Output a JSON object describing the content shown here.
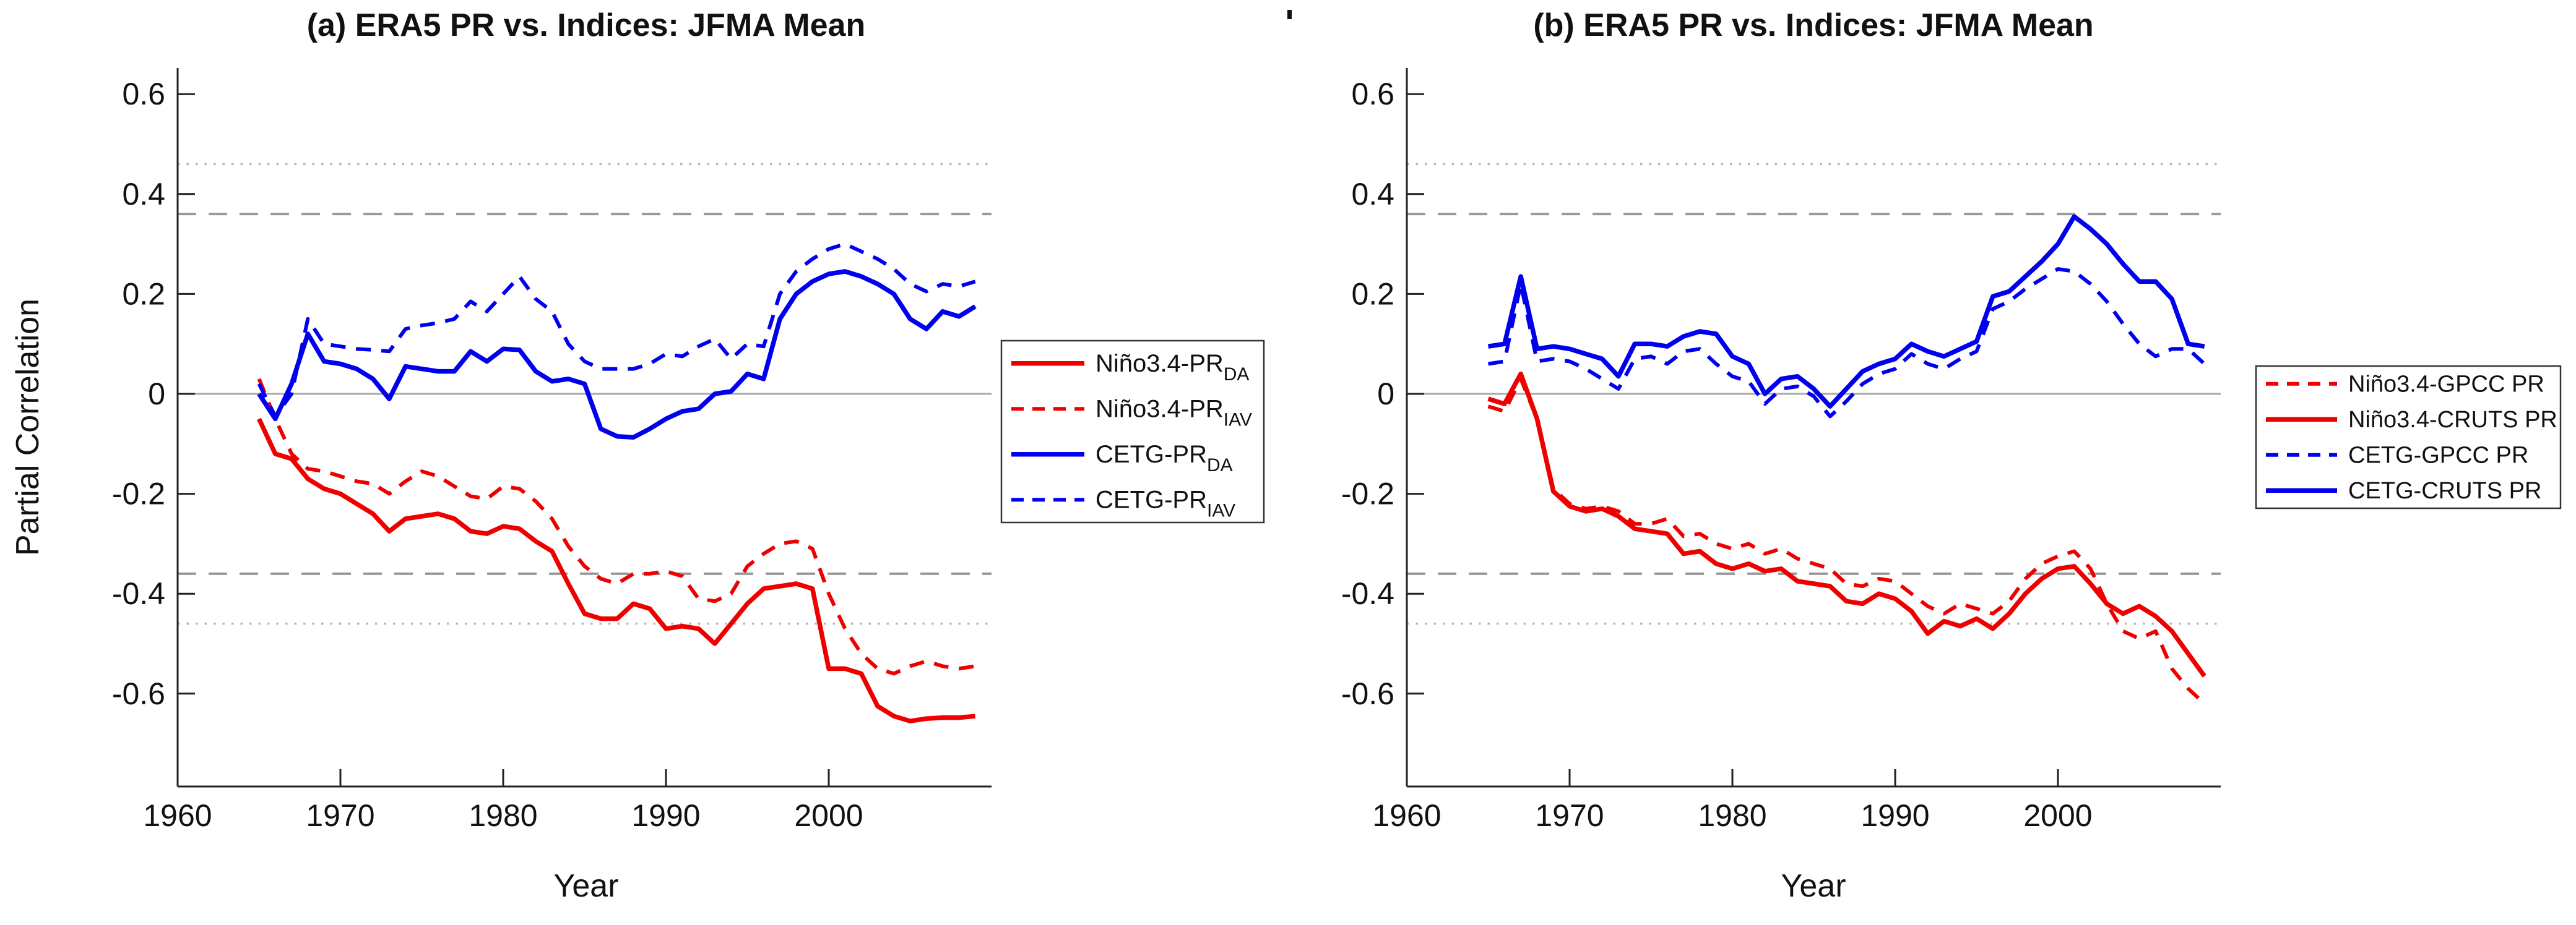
{
  "figure": {
    "background": "#ffffff",
    "artifact_dot_color": "#111111"
  },
  "colors": {
    "red": "#ee0000",
    "blue": "#0000ee",
    "ref_dashed_gray": "#999999",
    "ref_dotted_gray": "#b5b5b5",
    "zero_line_gray": "#aaaaaa",
    "axis": "#222222"
  },
  "chart_data": [
    {
      "type": "line",
      "title": "(a) ERA5 PR vs. Indices: JFMA Mean",
      "xlabel": "Year",
      "ylabel": "Partial Correlation",
      "xlim": [
        1960,
        2010
      ],
      "ylim": [
        -0.785,
        0.652
      ],
      "x_ticks": [
        1960,
        1970,
        1980,
        1990,
        2000
      ],
      "y_ticks": [
        "0.6",
        "0.4",
        "0.2",
        "0",
        "-0.2",
        "-0.4",
        "-0.6"
      ],
      "y_tick_values": [
        0.6,
        0.4,
        0.2,
        0,
        -0.2,
        -0.4,
        -0.6
      ],
      "grid": false,
      "legend_position": "right-outside",
      "reference_lines": [
        {
          "value": 0.46,
          "style": "dotted"
        },
        {
          "value": 0.36,
          "style": "dashed"
        },
        {
          "value": 0.0,
          "style": "solid"
        },
        {
          "value": -0.36,
          "style": "dashed"
        },
        {
          "value": -0.46,
          "style": "dotted"
        }
      ],
      "x_start": 1965,
      "x_step": 1,
      "series": [
        {
          "name": "Niño3.4-PR",
          "sub": "DA",
          "color": "red",
          "line": "solid",
          "values": [
            -0.05,
            -0.12,
            -0.13,
            -0.17,
            -0.19,
            -0.2,
            -0.22,
            -0.24,
            -0.275,
            -0.25,
            -0.245,
            -0.24,
            -0.25,
            -0.275,
            -0.28,
            -0.265,
            -0.27,
            -0.295,
            -0.315,
            -0.38,
            -0.44,
            -0.45,
            -0.45,
            -0.42,
            -0.43,
            -0.47,
            -0.465,
            -0.47,
            -0.5,
            -0.46,
            -0.42,
            -0.39,
            -0.385,
            -0.38,
            -0.39,
            -0.55,
            -0.55,
            -0.56,
            -0.625,
            -0.645,
            -0.655,
            -0.65,
            -0.648,
            -0.648,
            -0.645
          ]
        },
        {
          "name": "Niño3.4-PR",
          "sub": "IAV",
          "color": "red",
          "line": "dashed",
          "values": [
            0.03,
            -0.05,
            -0.12,
            -0.15,
            -0.155,
            -0.165,
            -0.175,
            -0.18,
            -0.2,
            -0.175,
            -0.155,
            -0.165,
            -0.185,
            -0.205,
            -0.21,
            -0.185,
            -0.19,
            -0.215,
            -0.25,
            -0.305,
            -0.345,
            -0.37,
            -0.38,
            -0.36,
            -0.36,
            -0.355,
            -0.365,
            -0.41,
            -0.415,
            -0.4,
            -0.345,
            -0.32,
            -0.3,
            -0.295,
            -0.31,
            -0.4,
            -0.47,
            -0.52,
            -0.55,
            -0.56,
            -0.545,
            -0.535,
            -0.545,
            -0.55,
            -0.545
          ]
        },
        {
          "name": "CETG-PR",
          "sub": "DA",
          "color": "blue",
          "line": "solid",
          "values": [
            0.0,
            -0.05,
            0.02,
            0.12,
            0.065,
            0.06,
            0.05,
            0.03,
            -0.01,
            0.055,
            0.05,
            0.045,
            0.045,
            0.085,
            0.065,
            0.09,
            0.088,
            0.045,
            0.025,
            0.03,
            0.02,
            -0.07,
            -0.085,
            -0.087,
            -0.07,
            -0.05,
            -0.035,
            -0.03,
            0.0,
            0.005,
            0.04,
            0.03,
            0.15,
            0.2,
            0.225,
            0.24,
            0.245,
            0.235,
            0.22,
            0.2,
            0.15,
            0.13,
            0.165,
            0.155,
            0.175
          ]
        },
        {
          "name": "CETG-PR",
          "sub": "IAV",
          "color": "blue",
          "line": "dashed",
          "values": [
            0.02,
            -0.045,
            0.0,
            0.15,
            0.1,
            0.095,
            0.09,
            0.088,
            0.085,
            0.13,
            0.137,
            0.142,
            0.15,
            0.185,
            0.165,
            0.2,
            0.235,
            0.19,
            0.165,
            0.1,
            0.065,
            0.05,
            0.05,
            0.05,
            0.06,
            0.08,
            0.075,
            0.095,
            0.11,
            0.07,
            0.1,
            0.095,
            0.2,
            0.245,
            0.27,
            0.29,
            0.3,
            0.285,
            0.27,
            0.25,
            0.22,
            0.205,
            0.22,
            0.215,
            0.225
          ]
        }
      ]
    },
    {
      "type": "line",
      "title": "(b) ERA5 PR vs. Indices: JFMA Mean",
      "xlabel": "Year",
      "ylabel": "",
      "xlim": [
        1960,
        2010
      ],
      "ylim": [
        -0.785,
        0.652
      ],
      "x_ticks": [
        1960,
        1970,
        1980,
        1990,
        2000
      ],
      "y_ticks": [
        "0.6",
        "0.4",
        "0.2",
        "0",
        "-0.2",
        "-0.4",
        "-0.6"
      ],
      "y_tick_values": [
        0.6,
        0.4,
        0.2,
        0,
        -0.2,
        -0.4,
        -0.6
      ],
      "grid": false,
      "legend_position": "right-outside",
      "reference_lines": [
        {
          "value": 0.46,
          "style": "dotted"
        },
        {
          "value": 0.36,
          "style": "dashed"
        },
        {
          "value": 0.0,
          "style": "solid"
        },
        {
          "value": -0.36,
          "style": "dashed"
        },
        {
          "value": -0.46,
          "style": "dotted"
        }
      ],
      "x_start": 1965,
      "x_step": 1,
      "series": [
        {
          "name": "Niño3.4-GPCC PR",
          "sub": "",
          "color": "red",
          "line": "dashed",
          "values": [
            -0.025,
            -0.035,
            0.03,
            -0.05,
            -0.19,
            -0.22,
            -0.23,
            -0.225,
            -0.235,
            -0.26,
            -0.26,
            -0.25,
            -0.285,
            -0.28,
            -0.3,
            -0.31,
            -0.3,
            -0.32,
            -0.31,
            -0.33,
            -0.34,
            -0.35,
            -0.38,
            -0.385,
            -0.37,
            -0.375,
            -0.4,
            -0.425,
            -0.44,
            -0.42,
            -0.43,
            -0.44,
            -0.415,
            -0.37,
            -0.34,
            -0.325,
            -0.315,
            -0.35,
            -0.42,
            -0.475,
            -0.49,
            -0.475,
            -0.55,
            -0.59,
            -0.62
          ]
        },
        {
          "name": "Niño3.4-CRUTS PR",
          "sub": "",
          "color": "red",
          "line": "solid",
          "values": [
            -0.01,
            -0.02,
            0.04,
            -0.05,
            -0.195,
            -0.225,
            -0.235,
            -0.23,
            -0.245,
            -0.27,
            -0.275,
            -0.28,
            -0.32,
            -0.315,
            -0.34,
            -0.35,
            -0.34,
            -0.355,
            -0.35,
            -0.375,
            -0.38,
            -0.385,
            -0.415,
            -0.42,
            -0.4,
            -0.41,
            -0.435,
            -0.48,
            -0.455,
            -0.465,
            -0.45,
            -0.47,
            -0.44,
            -0.4,
            -0.37,
            -0.35,
            -0.345,
            -0.38,
            -0.42,
            -0.44,
            -0.425,
            -0.445,
            -0.475,
            -0.52,
            -0.565
          ]
        },
        {
          "name": "CETG-GPCC PR",
          "sub": "",
          "color": "blue",
          "line": "dashed",
          "values": [
            0.06,
            0.065,
            0.22,
            0.065,
            0.07,
            0.065,
            0.05,
            0.03,
            0.01,
            0.07,
            0.075,
            0.06,
            0.085,
            0.09,
            0.06,
            0.035,
            0.025,
            -0.02,
            0.01,
            0.015,
            -0.005,
            -0.045,
            -0.015,
            0.02,
            0.04,
            0.05,
            0.08,
            0.06,
            0.05,
            0.07,
            0.085,
            0.17,
            0.185,
            0.21,
            0.23,
            0.25,
            0.245,
            0.22,
            0.185,
            0.14,
            0.1,
            0.075,
            0.09,
            0.09,
            0.06
          ]
        },
        {
          "name": "CETG-CRUTS PR",
          "sub": "",
          "color": "blue",
          "line": "solid",
          "values": [
            0.095,
            0.1,
            0.235,
            0.09,
            0.095,
            0.09,
            0.08,
            0.07,
            0.035,
            0.1,
            0.1,
            0.095,
            0.115,
            0.125,
            0.12,
            0.075,
            0.06,
            0.0,
            0.03,
            0.035,
            0.01,
            -0.025,
            0.01,
            0.045,
            0.06,
            0.07,
            0.1,
            0.085,
            0.075,
            0.09,
            0.105,
            0.195,
            0.205,
            0.235,
            0.265,
            0.3,
            0.355,
            0.33,
            0.3,
            0.26,
            0.225,
            0.225,
            0.19,
            0.1,
            0.095
          ]
        }
      ]
    }
  ]
}
